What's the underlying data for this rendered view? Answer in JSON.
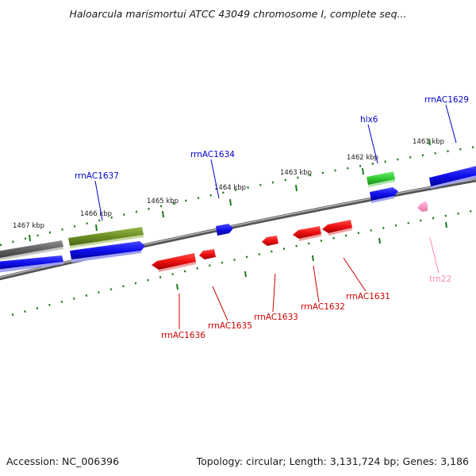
{
  "title": "Haloarcula marismortui ATCC 43049 chromosome I, complete seq...",
  "footer": {
    "accession": "Accession: NC_006396",
    "summary": "Topology: circular; Length: 3,131,724 bp; Genes: 3,186"
  },
  "ticks": [
    "1467 kbp",
    "1466 kbp",
    "1465 kbp",
    "1464 kbp",
    "1463 kbp",
    "1462 kbp",
    "1461 kbp"
  ],
  "genes": [
    {
      "label": "rrnAC1629",
      "color": "#0000cc"
    },
    {
      "label": "hlx6",
      "color": "#0000cc"
    },
    {
      "label": "rrnAC1634",
      "color": "#0000cc"
    },
    {
      "label": "rrnAC1637",
      "color": "#0000cc"
    },
    {
      "label": "rrnAC1636",
      "color": "#cc0000"
    },
    {
      "label": "rrnAC1635",
      "color": "#cc0000"
    },
    {
      "label": "rrnAC1633",
      "color": "#cc0000"
    },
    {
      "label": "rrnAC1632",
      "color": "#cc0000"
    },
    {
      "label": "rrnAC1631",
      "color": "#cc0000"
    },
    {
      "label": "trn22",
      "color": "#ff88bb"
    }
  ],
  "colors": {
    "backbone": "#7a7a7a",
    "tick": "#1a7a1a",
    "forward_gene": "#1010ee",
    "reverse_gene": "#ee1010",
    "rrna": "#33cc33",
    "trna": "#ff88bb",
    "other": "#6b8e23",
    "pseudo": "#606060"
  }
}
